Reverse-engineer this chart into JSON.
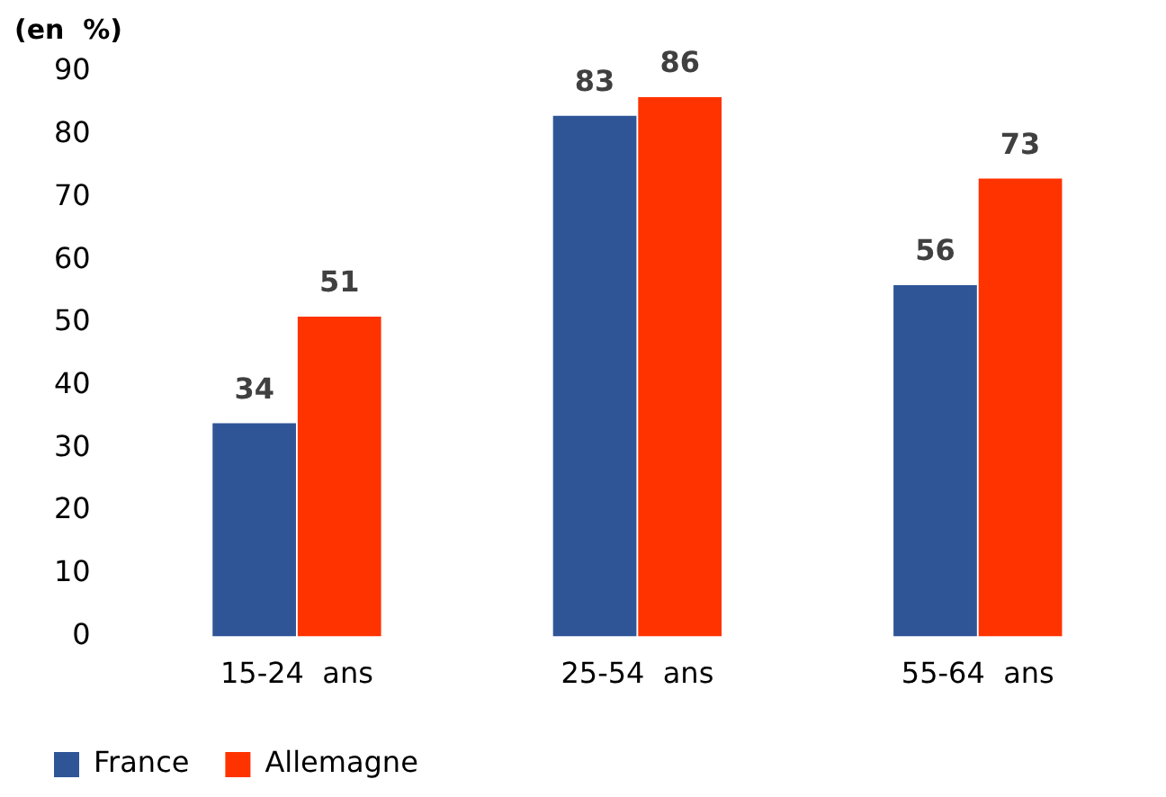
{
  "chart_data": {
    "type": "bar",
    "ylabel": "(en  %)",
    "categories": [
      "15-24  ans",
      "25-54  ans",
      "55-64  ans"
    ],
    "series": [
      {
        "name": "France",
        "color": "#2f5597",
        "values": [
          34,
          83,
          56
        ]
      },
      {
        "name": "Allemagne",
        "color": "#ff3300",
        "values": [
          51,
          86,
          73
        ]
      }
    ],
    "ylim": [
      0,
      90
    ],
    "yticks": [
      0,
      10,
      20,
      30,
      40,
      50,
      60,
      70,
      80,
      90
    ],
    "grid": false,
    "legend": "bottom",
    "data_labels": true
  }
}
